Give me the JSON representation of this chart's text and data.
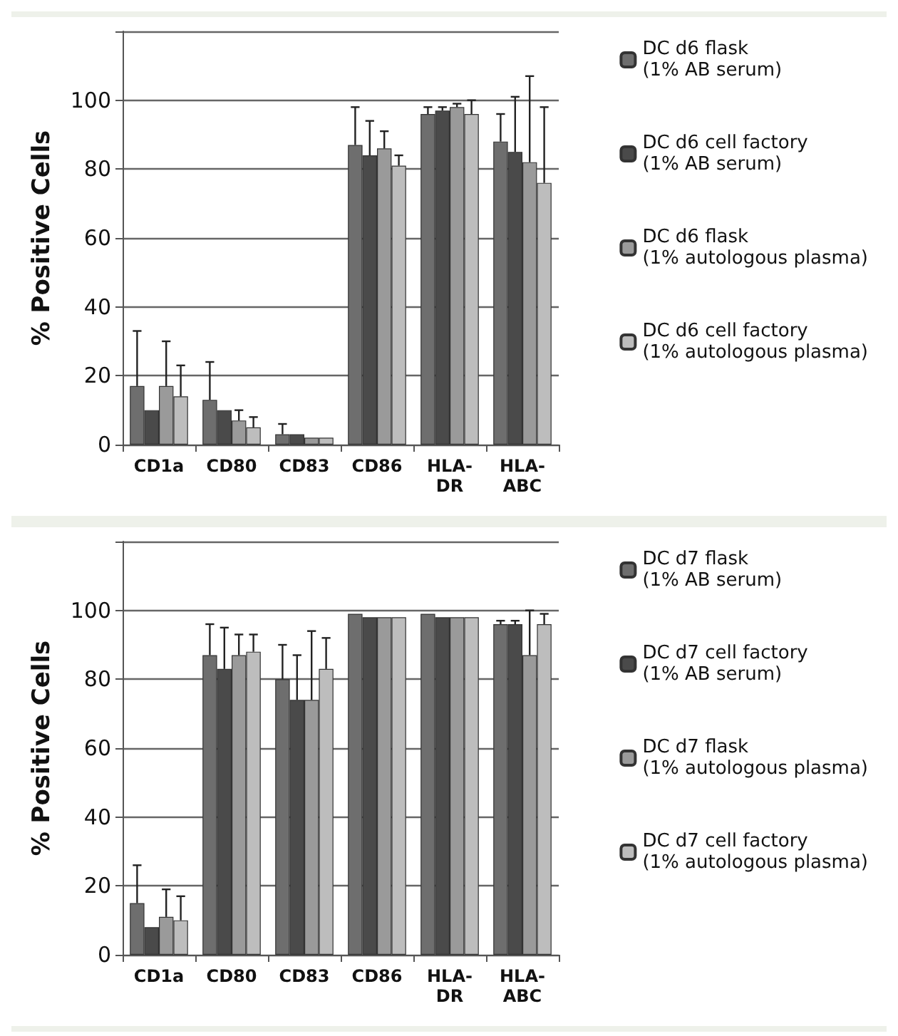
{
  "chart_data": [
    {
      "type": "bar",
      "ylabel": "% Positive Cells",
      "categories": [
        "CD1a",
        "CD80",
        "CD83",
        "CD86",
        "HLA-\nDR",
        "HLA-\nABC"
      ],
      "ylim": [
        0,
        120
      ],
      "yticks": [
        0,
        20,
        40,
        60,
        80,
        100,
        {
          "value": 120,
          "label": null
        }
      ],
      "grid": "y",
      "legend": "right",
      "series": [
        {
          "name": "DC d6 flask\n(1% AB serum)",
          "color": "#6e6e6e",
          "values": [
            17,
            13,
            3,
            87,
            96,
            88
          ],
          "errors": [
            [
              17,
              33
            ],
            [
              13,
              24
            ],
            [
              3,
              6
            ],
            [
              87,
              98
            ],
            [
              96,
              98
            ],
            [
              88,
              96
            ]
          ]
        },
        {
          "name": "DC d6 cell factory\n(1% AB serum)",
          "color": "#4a4a4a",
          "values": [
            10,
            10,
            3,
            84,
            97,
            85
          ],
          "errors": [
            null,
            null,
            null,
            [
              84,
              94
            ],
            [
              97,
              98
            ],
            [
              85,
              101
            ]
          ]
        },
        {
          "name": "DC d6 flask\n(1% autologous plasma)",
          "color": "#9a9a9a",
          "values": [
            17,
            7,
            2,
            86,
            98,
            82
          ],
          "errors": [
            [
              17,
              30
            ],
            [
              7,
              10
            ],
            null,
            [
              86,
              91
            ],
            [
              98,
              99
            ],
            [
              82,
              107
            ]
          ]
        },
        {
          "name": "DC d6 cell factory\n(1% autologous plasma)",
          "color": "#bdbdbd",
          "values": [
            14,
            5,
            2,
            81,
            96,
            76
          ],
          "errors": [
            [
              14,
              23
            ],
            [
              5,
              8
            ],
            null,
            [
              81,
              84
            ],
            [
              96,
              100
            ],
            [
              76,
              98
            ]
          ]
        }
      ]
    },
    {
      "type": "bar",
      "ylabel": "% Positive Cells",
      "categories": [
        "CD1a",
        "CD80",
        "CD83",
        "CD86",
        "HLA-\nDR",
        "HLA-\nABC"
      ],
      "ylim": [
        0,
        120
      ],
      "yticks": [
        0,
        20,
        40,
        60,
        80,
        100,
        {
          "value": 120,
          "label": null
        }
      ],
      "grid": "y",
      "legend": "right",
      "series": [
        {
          "name": "DC d7 flask\n(1% AB serum)",
          "color": "#6e6e6e",
          "values": [
            15,
            87,
            80,
            99,
            99,
            96
          ],
          "errors": [
            [
              15,
              26
            ],
            [
              87,
              96
            ],
            [
              80,
              90
            ],
            null,
            null,
            [
              96,
              97
            ]
          ]
        },
        {
          "name": "DC d7 cell factory\n(1% AB serum)",
          "color": "#4a4a4a",
          "values": [
            8,
            83,
            74,
            98,
            98,
            96
          ],
          "errors": [
            null,
            [
              83,
              95
            ],
            [
              74,
              87
            ],
            null,
            null,
            [
              96,
              97
            ]
          ]
        },
        {
          "name": "DC d7 flask\n(1% autologous plasma)",
          "color": "#9a9a9a",
          "values": [
            11,
            87,
            74,
            98,
            98,
            87
          ],
          "errors": [
            [
              11,
              19
            ],
            [
              87,
              93
            ],
            [
              74,
              94
            ],
            null,
            null,
            [
              87,
              100
            ]
          ]
        },
        {
          "name": "DC d7 cell factory\n(1% autologous plasma)",
          "color": "#bdbdbd",
          "values": [
            10,
            88,
            83,
            98,
            98,
            96
          ],
          "errors": [
            [
              10,
              17
            ],
            [
              88,
              93
            ],
            [
              83,
              92
            ],
            null,
            null,
            [
              96,
              99
            ]
          ]
        }
      ]
    }
  ]
}
